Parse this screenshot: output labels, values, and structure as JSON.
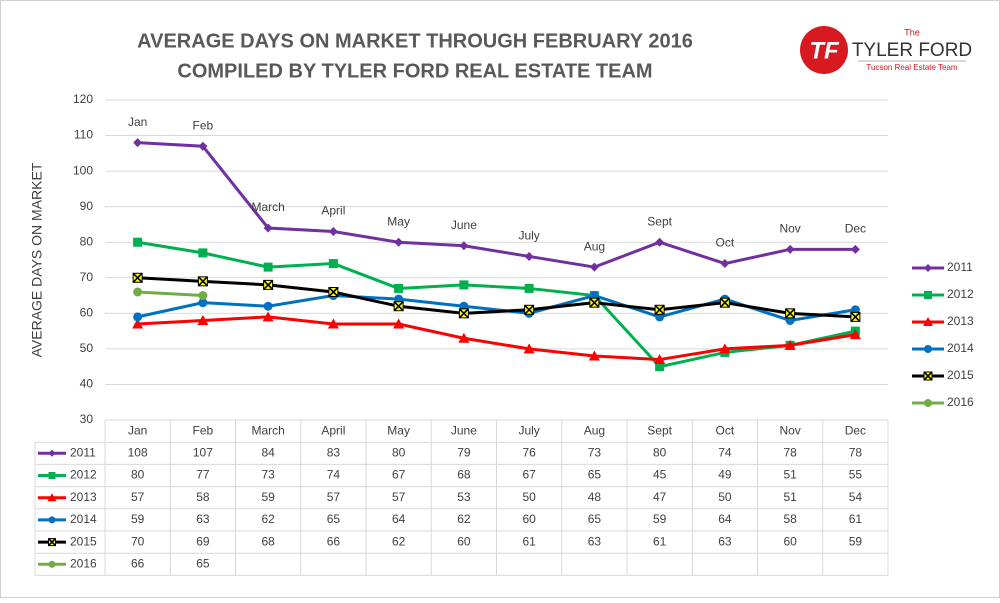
{
  "chart_data": {
    "type": "line",
    "title": "AVERAGE DAYS ON MARKET THROUGH FEBRUARY 2016",
    "subtitle": "COMPILED BY TYLER FORD REAL ESTATE TEAM",
    "y_label": "AVERAGE DAYS ON MARKET",
    "categories": [
      "Jan",
      "Feb",
      "March",
      "April",
      "May",
      "June",
      "July",
      "Aug",
      "Sept",
      "Oct",
      "Nov",
      "Dec"
    ],
    "series": [
      {
        "name": "2011",
        "color": "#7030a0",
        "marker": "diamond",
        "values": [
          108,
          107,
          84,
          83,
          80,
          79,
          76,
          73,
          80,
          74,
          78,
          78
        ]
      },
      {
        "name": "2012",
        "color": "#00b050",
        "marker": "square",
        "values": [
          80,
          77,
          73,
          74,
          67,
          68,
          67,
          65,
          45,
          49,
          51,
          55
        ]
      },
      {
        "name": "2013",
        "color": "#ff0000",
        "marker": "triangle",
        "values": [
          57,
          58,
          59,
          57,
          57,
          53,
          50,
          48,
          47,
          50,
          51,
          54
        ]
      },
      {
        "name": "2014",
        "color": "#0070c0",
        "marker": "circle",
        "values": [
          59,
          63,
          62,
          65,
          64,
          62,
          60,
          65,
          59,
          64,
          58,
          61
        ]
      },
      {
        "name": "2015",
        "color": "#000000",
        "marker": "x",
        "values": [
          70,
          69,
          68,
          66,
          62,
          60,
          61,
          63,
          61,
          63,
          60,
          59
        ]
      },
      {
        "name": "2016",
        "color": "#70ad47",
        "marker": "circle",
        "values": [
          66,
          65,
          null,
          null,
          null,
          null,
          null,
          null,
          null,
          null,
          null,
          null
        ]
      }
    ],
    "ylim": [
      30,
      120
    ],
    "yticks": [
      30,
      40,
      50,
      60,
      70,
      80,
      90,
      100,
      110,
      120
    ],
    "grid": true,
    "legend": "right",
    "data_table": true
  },
  "logo": {
    "initials": "TF",
    "the": "The",
    "name": "TYLER FORD",
    "tagline": "Tucson Real Estate Team"
  }
}
